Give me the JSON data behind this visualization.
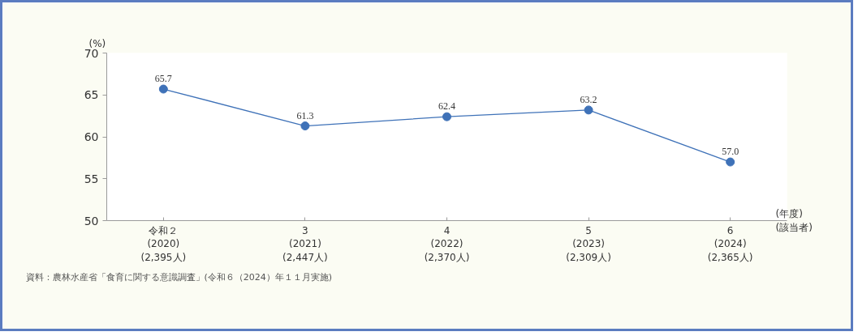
{
  "chart_data": {
    "type": "line",
    "categories": [
      "令和２\n(2020)\n(2,395人)",
      "3\n(2021)\n(2,447人)",
      "4\n(2022)\n(2,370人)",
      "5\n(2023)\n(2,309人)",
      "6\n(2024)\n(2,365人)"
    ],
    "series": [
      {
        "color": "#3f72b8",
        "values": [
          65.7,
          61.3,
          62.4,
          63.2,
          57.0
        ],
        "value_labels": [
          "65.7",
          "61.3",
          "62.4",
          "63.2",
          "57.0"
        ]
      }
    ],
    "ylabel": "(%)",
    "xlabel": "(年度)\n(該当者)",
    "ylim": [
      50,
      70
    ],
    "yticks": [
      50,
      55,
      60,
      65,
      70
    ],
    "marker": "circle",
    "line_style": "solid",
    "grid": false,
    "annotations": [
      "資料：農林水産省「食育に関する意識調査」(令和６（2024）年１１月実施)"
    ]
  }
}
